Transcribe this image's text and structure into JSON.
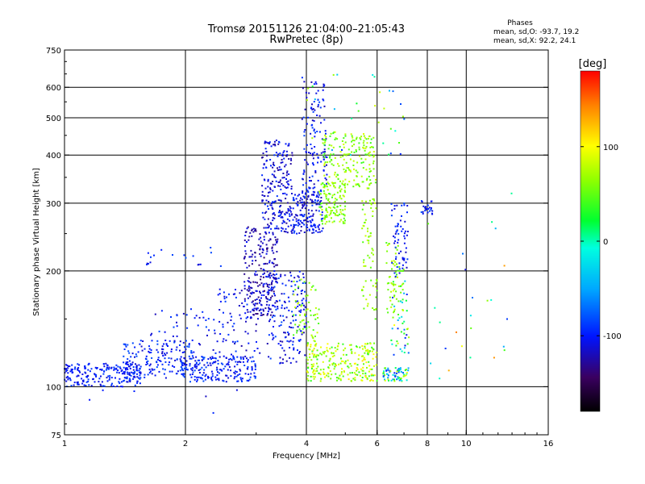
{
  "chart_data": {
    "type": "scatter",
    "title": "Tromsø 20151126 21:04:00–21:05:43",
    "subtitle": "RwPretec (8p)",
    "xlabel": "Frequency [MHz]",
    "ylabel": "Stationary phase Virtual Height [km]",
    "x_scale": "log",
    "y_scale": "log",
    "xlim": [
      1,
      16
    ],
    "ylim": [
      75,
      750
    ],
    "x_ticks": [
      1,
      2,
      4,
      6,
      8,
      10,
      16
    ],
    "x_tick_labels": [
      "1",
      "2",
      "4",
      "6",
      "8",
      "10",
      "16"
    ],
    "y_ticks": [
      75,
      100,
      200,
      300,
      400,
      500,
      600,
      750
    ],
    "y_tick_labels": [
      "75",
      "100",
      "200",
      "300",
      "400",
      "500",
      "600",
      "750"
    ],
    "x_gridlines": [
      2,
      4,
      6,
      8,
      10
    ],
    "y_gridlines": [
      100,
      200,
      300,
      400,
      500,
      600
    ],
    "grid": true,
    "phase_stats": {
      "heading": "Phases",
      "line_o": "mean, sd,O:  -93.7, 19.2",
      "line_x": "mean, sd,X:  92.2, 24.1"
    },
    "colorbar": {
      "label": "[deg]",
      "range": [
        -180,
        180
      ],
      "tick_values": [
        100,
        0,
        -100
      ],
      "tick_labels": [
        "100",
        "0",
        "-100"
      ]
    },
    "clusters": [
      {
        "x": [
          1.0,
          1.55
        ],
        "y": [
          100,
          115
        ],
        "phase": [
          -115,
          -85
        ],
        "count": 220
      },
      {
        "x": [
          1.4,
          2.1
        ],
        "y": [
          105,
          132
        ],
        "phase": [
          -115,
          -80
        ],
        "count": 160
      },
      {
        "x": [
          1.95,
          3.0
        ],
        "y": [
          103,
          120
        ],
        "phase": [
          -115,
          -80
        ],
        "count": 200
      },
      {
        "x": [
          1.6,
          2.6
        ],
        "y": [
          122,
          160
        ],
        "phase": [
          -120,
          -80
        ],
        "count": 50
      },
      {
        "x": [
          1.6,
          2.5
        ],
        "y": [
          205,
          230
        ],
        "phase": [
          -115,
          -80
        ],
        "count": 18
      },
      {
        "x": [
          2.4,
          3.1
        ],
        "y": [
          120,
          180
        ],
        "phase": [
          -125,
          -85
        ],
        "count": 70
      },
      {
        "x": [
          2.8,
          3.4
        ],
        "y": [
          150,
          260
        ],
        "phase": [
          -140,
          -100
        ],
        "count": 230
      },
      {
        "x": [
          3.2,
          4.0
        ],
        "y": [
          115,
          200
        ],
        "phase": [
          -125,
          -80
        ],
        "count": 170
      },
      {
        "x": [
          3.1,
          3.7
        ],
        "y": [
          250,
          440
        ],
        "phase": [
          -130,
          -90
        ],
        "count": 230
      },
      {
        "x": [
          3.7,
          4.4
        ],
        "y": [
          250,
          330
        ],
        "phase": [
          -125,
          -85
        ],
        "count": 170
      },
      {
        "x": [
          3.9,
          4.5
        ],
        "y": [
          330,
          640
        ],
        "phase": [
          -125,
          -85
        ],
        "count": 120
      },
      {
        "x": [
          4.3,
          5.0
        ],
        "y": [
          265,
          340
        ],
        "phase": [
          40,
          85
        ],
        "count": 120
      },
      {
        "x": [
          4.4,
          5.9
        ],
        "y": [
          330,
          460
        ],
        "phase": [
          35,
          90
        ],
        "count": 180
      },
      {
        "x": [
          5.5,
          6.0
        ],
        "y": [
          150,
          350
        ],
        "phase": [
          45,
          85
        ],
        "count": 80
      },
      {
        "x": [
          4.0,
          6.0
        ],
        "y": [
          103,
          130
        ],
        "phase": [
          30,
          110
        ],
        "count": 250
      },
      {
        "x": [
          3.7,
          4.3
        ],
        "y": [
          130,
          190
        ],
        "phase": [
          40,
          90
        ],
        "count": 60
      },
      {
        "x": [
          6.2,
          7.2
        ],
        "y": [
          103,
          112
        ],
        "phase": [
          -100,
          100
        ],
        "count": 70
      },
      {
        "x": [
          6.3,
          7.0
        ],
        "y": [
          150,
          240
        ],
        "phase": [
          40,
          85
        ],
        "count": 60
      },
      {
        "x": [
          6.5,
          7.2
        ],
        "y": [
          200,
          300
        ],
        "phase": [
          -120,
          -80
        ],
        "count": 60
      },
      {
        "x": [
          6.5,
          7.2
        ],
        "y": [
          120,
          200
        ],
        "phase": [
          -120,
          100
        ],
        "count": 50
      },
      {
        "x": [
          7.7,
          8.3
        ],
        "y": [
          280,
          305
        ],
        "phase": [
          -120,
          -80
        ],
        "count": 25
      },
      {
        "x": [
          4.0,
          8.0
        ],
        "y": [
          400,
          650
        ],
        "phase": [
          -100,
          100
        ],
        "count": 35
      },
      {
        "x": [
          8.0,
          13.0
        ],
        "y": [
          100,
          320
        ],
        "phase": [
          -150,
          150
        ],
        "count": 25
      },
      {
        "x": [
          1.0,
          3.0
        ],
        "y": [
          78,
          100
        ],
        "phase": [
          -120,
          -90
        ],
        "count": 6
      }
    ]
  }
}
